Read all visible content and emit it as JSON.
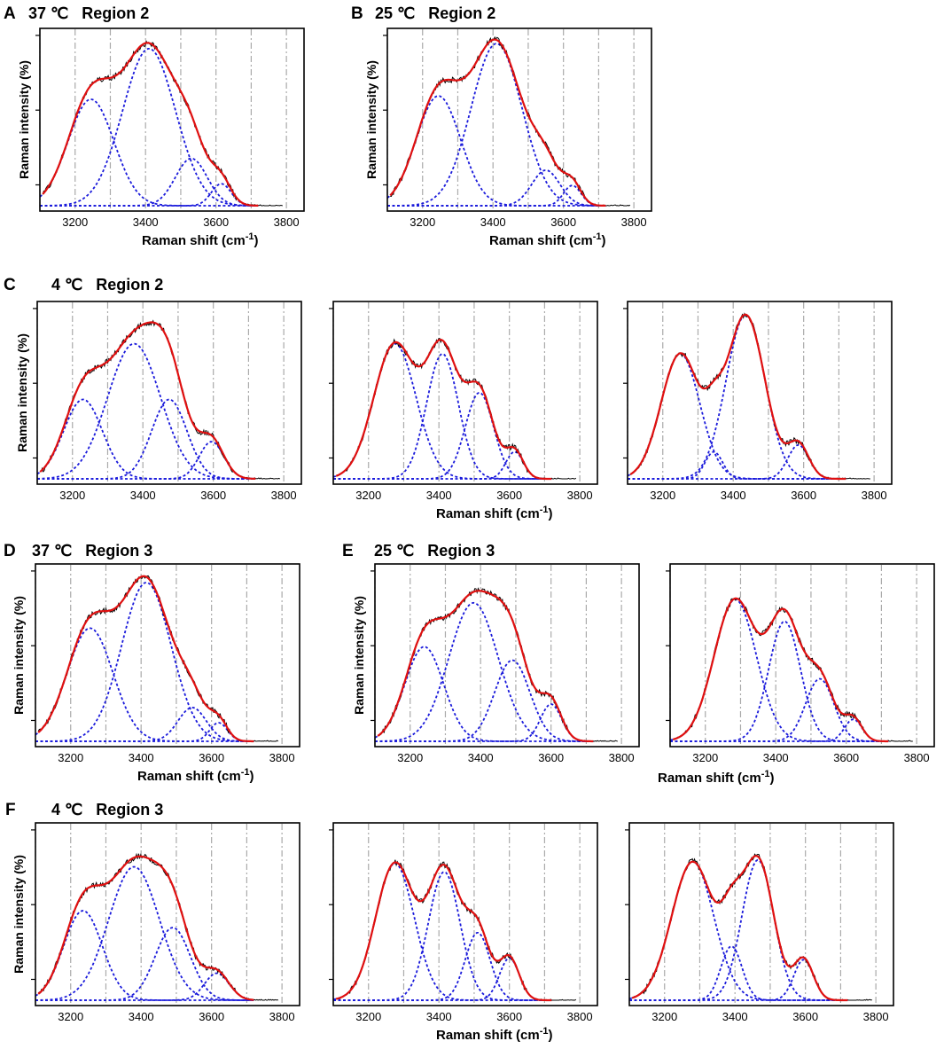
{
  "figure": {
    "axis_label_x": "Raman shift (cm",
    "axis_label_x_sup": "-1",
    "axis_label_x_close": ")",
    "axis_label_y": "Raman intensity (%)",
    "x_ticks": [
      "3200",
      "3400",
      "3600",
      "3800"
    ],
    "colors": {
      "raw": "#000000",
      "fit": "#e01010",
      "component": "#1a1adb",
      "grid": "#aaaaaa",
      "background": "#ffffff"
    }
  },
  "panels": [
    {
      "letter": "A",
      "title": "37 ℃   Region 2"
    },
    {
      "letter": "B",
      "title": "25 ℃   Region 2"
    },
    {
      "letter": "C",
      "title": "4 ℃   Region 2"
    },
    {
      "letter": "D",
      "title": "37 ℃   Region 3"
    },
    {
      "letter": "E",
      "title": "25 ℃   Region 3"
    },
    {
      "letter": "F",
      "title": "4 ℃   Region 3"
    }
  ],
  "chart_data": [
    {
      "id": "A",
      "type": "line",
      "title": "37 ℃ Region 2",
      "xlabel": "Raman shift (cm-1)",
      "ylabel": "Raman intensity (%)",
      "xlim": [
        3100,
        3850
      ],
      "ylim": [
        0,
        1.05
      ],
      "components": [
        {
          "center": 3245,
          "height": 0.63,
          "width": 65
        },
        {
          "center": 3410,
          "height": 0.93,
          "width": 75
        },
        {
          "center": 3530,
          "height": 0.28,
          "width": 45
        },
        {
          "center": 3615,
          "height": 0.13,
          "width": 28
        }
      ]
    },
    {
      "id": "B",
      "type": "line",
      "title": "25 ℃ Region 2",
      "xlabel": "Raman shift (cm-1)",
      "ylabel": "Raman intensity (%)",
      "xlim": [
        3100,
        3850
      ],
      "ylim": [
        0,
        1.05
      ],
      "components": [
        {
          "center": 3245,
          "height": 0.65,
          "width": 63
        },
        {
          "center": 3410,
          "height": 0.96,
          "width": 72
        },
        {
          "center": 3550,
          "height": 0.21,
          "width": 40
        },
        {
          "center": 3625,
          "height": 0.12,
          "width": 25
        }
      ]
    },
    {
      "id": "C1",
      "type": "line",
      "title": "4 ℃ Region 2",
      "xlabel": "",
      "ylabel": "Raman intensity (%)",
      "xlim": [
        3100,
        3850
      ],
      "ylim": [
        0,
        1.05
      ],
      "components": [
        {
          "center": 3230,
          "height": 0.47,
          "width": 55
        },
        {
          "center": 3375,
          "height": 0.8,
          "width": 75
        },
        {
          "center": 3475,
          "height": 0.47,
          "width": 50
        },
        {
          "center": 3595,
          "height": 0.22,
          "width": 35
        }
      ]
    },
    {
      "id": "C2",
      "type": "line",
      "title": "",
      "xlabel": "Raman shift (cm-1)",
      "ylabel": "",
      "xlim": [
        3100,
        3850
      ],
      "ylim": [
        0,
        1.05
      ],
      "components": [
        {
          "center": 3275,
          "height": 0.8,
          "width": 60
        },
        {
          "center": 3410,
          "height": 0.74,
          "width": 45
        },
        {
          "center": 3515,
          "height": 0.51,
          "width": 40
        },
        {
          "center": 3615,
          "height": 0.16,
          "width": 25
        }
      ]
    },
    {
      "id": "C3",
      "type": "line",
      "title": "",
      "xlabel": "",
      "ylabel": "",
      "xlim": [
        3100,
        3850
      ],
      "ylim": [
        0,
        1.05
      ],
      "components": [
        {
          "center": 3250,
          "height": 0.74,
          "width": 55
        },
        {
          "center": 3345,
          "height": 0.16,
          "width": 25
        },
        {
          "center": 3435,
          "height": 0.97,
          "width": 55
        },
        {
          "center": 3585,
          "height": 0.2,
          "width": 30
        }
      ]
    },
    {
      "id": "D",
      "type": "line",
      "title": "37 ℃ Region 3",
      "xlabel": "Raman shift (cm-1)",
      "ylabel": "Raman intensity (%)",
      "xlim": [
        3100,
        3850
      ],
      "ylim": [
        0,
        1.05
      ],
      "components": [
        {
          "center": 3255,
          "height": 0.67,
          "width": 65
        },
        {
          "center": 3415,
          "height": 0.94,
          "width": 70
        },
        {
          "center": 3545,
          "height": 0.2,
          "width": 40
        },
        {
          "center": 3620,
          "height": 0.11,
          "width": 25
        }
      ]
    },
    {
      "id": "E1",
      "type": "line",
      "title": "25 ℃ Region 3",
      "xlabel": "",
      "ylabel": "Raman intensity (%)",
      "xlim": [
        3100,
        3850
      ],
      "ylim": [
        0,
        1.05
      ],
      "components": [
        {
          "center": 3240,
          "height": 0.56,
          "width": 55
        },
        {
          "center": 3380,
          "height": 0.82,
          "width": 70
        },
        {
          "center": 3490,
          "height": 0.48,
          "width": 50
        },
        {
          "center": 3600,
          "height": 0.22,
          "width": 30
        }
      ]
    },
    {
      "id": "E2",
      "type": "line",
      "title": "",
      "xlabel": "",
      "ylabel": "",
      "xlim": [
        3100,
        3850
      ],
      "ylim": [
        0,
        1.05
      ],
      "components": [
        {
          "center": 3285,
          "height": 0.84,
          "width": 60
        },
        {
          "center": 3425,
          "height": 0.71,
          "width": 45
        },
        {
          "center": 3525,
          "height": 0.37,
          "width": 40
        },
        {
          "center": 3620,
          "height": 0.13,
          "width": 25
        }
      ]
    },
    {
      "id": "F1",
      "type": "line",
      "title": "4 ℃ Region 3",
      "xlabel": "",
      "ylabel": "Raman intensity (%)",
      "xlim": [
        3100,
        3850
      ],
      "ylim": [
        0,
        1.05
      ],
      "components": [
        {
          "center": 3235,
          "height": 0.53,
          "width": 55
        },
        {
          "center": 3380,
          "height": 0.79,
          "width": 72
        },
        {
          "center": 3490,
          "height": 0.43,
          "width": 50
        },
        {
          "center": 3615,
          "height": 0.16,
          "width": 35
        }
      ]
    },
    {
      "id": "F2",
      "type": "line",
      "title": "",
      "xlabel": "Raman shift (cm-1)",
      "ylabel": "",
      "xlim": [
        3100,
        3850
      ],
      "ylim": [
        0,
        1.05
      ],
      "components": [
        {
          "center": 3275,
          "height": 0.81,
          "width": 55
        },
        {
          "center": 3415,
          "height": 0.76,
          "width": 45
        },
        {
          "center": 3510,
          "height": 0.4,
          "width": 35
        },
        {
          "center": 3600,
          "height": 0.25,
          "width": 28
        }
      ]
    },
    {
      "id": "F3",
      "type": "line",
      "title": "",
      "xlabel": "",
      "ylabel": "",
      "xlim": [
        3100,
        3850
      ],
      "ylim": [
        0,
        1.05
      ],
      "components": [
        {
          "center": 3280,
          "height": 0.82,
          "width": 60
        },
        {
          "center": 3390,
          "height": 0.32,
          "width": 30
        },
        {
          "center": 3465,
          "height": 0.83,
          "width": 45
        },
        {
          "center": 3595,
          "height": 0.24,
          "width": 28
        }
      ]
    }
  ]
}
